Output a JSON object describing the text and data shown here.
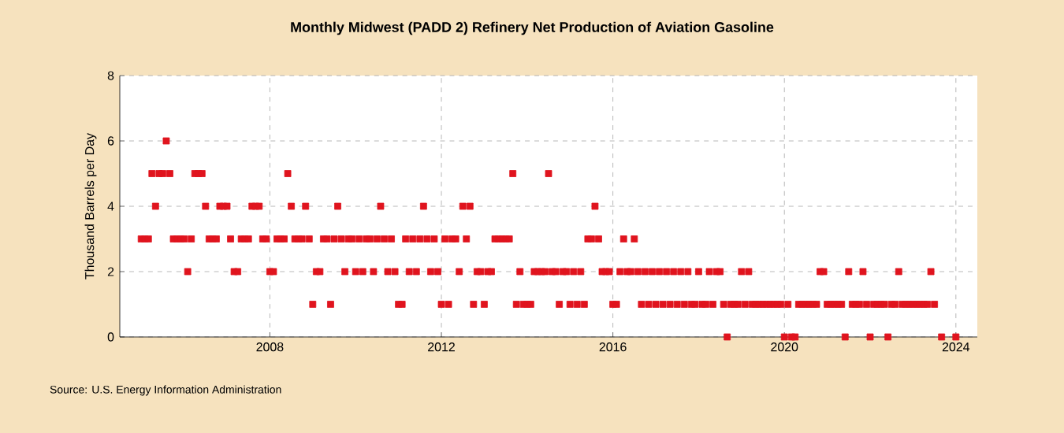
{
  "chart_data": {
    "type": "scatter",
    "title": "Monthly Midwest (PADD 2) Refinery Net Production of Aviation Gasoline",
    "ylabel": "Thousand Barrels per Day",
    "annotations": [
      "Source: U.S. Energy Information Administration"
    ],
    "marker": "square",
    "grid": true,
    "xlim": [
      "2004-07",
      "2024-07"
    ],
    "xticks": [
      "2008",
      "2012",
      "2016",
      "2020",
      "2024"
    ],
    "ylim": [
      0,
      8
    ],
    "yticks": [
      0,
      2,
      4,
      6,
      8
    ],
    "series": [
      {
        "color": "#e0141e",
        "x": [
          "2005-01",
          "2005-02",
          "2005-03",
          "2005-04",
          "2005-05",
          "2005-06",
          "2005-07",
          "2005-08",
          "2005-09",
          "2005-10",
          "2005-11",
          "2005-12",
          "2006-01",
          "2006-02",
          "2006-03",
          "2006-04",
          "2006-05",
          "2006-06",
          "2006-07",
          "2006-08",
          "2006-09",
          "2006-10",
          "2006-11",
          "2006-12",
          "2007-01",
          "2007-02",
          "2007-03",
          "2007-04",
          "2007-05",
          "2007-06",
          "2007-07",
          "2007-08",
          "2007-09",
          "2007-10",
          "2007-11",
          "2007-12",
          "2008-01",
          "2008-02",
          "2008-03",
          "2008-04",
          "2008-05",
          "2008-06",
          "2008-07",
          "2008-08",
          "2008-09",
          "2008-10",
          "2008-11",
          "2008-12",
          "2009-01",
          "2009-02",
          "2009-03",
          "2009-04",
          "2009-05",
          "2009-06",
          "2009-07",
          "2009-08",
          "2009-09",
          "2009-10",
          "2009-11",
          "2009-12",
          "2010-01",
          "2010-02",
          "2010-03",
          "2010-04",
          "2010-05",
          "2010-06",
          "2010-07",
          "2010-08",
          "2010-09",
          "2010-10",
          "2010-11",
          "2010-12",
          "2011-01",
          "2011-02",
          "2011-03",
          "2011-04",
          "2011-05",
          "2011-06",
          "2011-07",
          "2011-08",
          "2011-09",
          "2011-10",
          "2011-11",
          "2011-12",
          "2012-01",
          "2012-02",
          "2012-03",
          "2012-04",
          "2012-05",
          "2012-06",
          "2012-07",
          "2012-08",
          "2012-09",
          "2012-10",
          "2012-11",
          "2012-12",
          "2013-01",
          "2013-02",
          "2013-03",
          "2013-04",
          "2013-05",
          "2013-06",
          "2013-07",
          "2013-08",
          "2013-09",
          "2013-10",
          "2013-11",
          "2013-12",
          "2014-01",
          "2014-02",
          "2014-03",
          "2014-04",
          "2014-05",
          "2014-06",
          "2014-07",
          "2014-08",
          "2014-09",
          "2014-10",
          "2014-11",
          "2014-12",
          "2015-01",
          "2015-02",
          "2015-03",
          "2015-04",
          "2015-05",
          "2015-06",
          "2015-07",
          "2015-08",
          "2015-09",
          "2015-10",
          "2015-11",
          "2015-12",
          "2016-01",
          "2016-02",
          "2016-03",
          "2016-04",
          "2016-05",
          "2016-06",
          "2016-07",
          "2016-08",
          "2016-09",
          "2016-10",
          "2016-11",
          "2016-12",
          "2017-01",
          "2017-02",
          "2017-03",
          "2017-04",
          "2017-05",
          "2017-06",
          "2017-07",
          "2017-08",
          "2017-09",
          "2017-10",
          "2017-11",
          "2017-12",
          "2018-01",
          "2018-02",
          "2018-03",
          "2018-04",
          "2018-05",
          "2018-06",
          "2018-07",
          "2018-08",
          "2018-09",
          "2018-10",
          "2018-11",
          "2018-12",
          "2019-01",
          "2019-02",
          "2019-03",
          "2019-04",
          "2019-05",
          "2019-06",
          "2019-07",
          "2019-08",
          "2019-09",
          "2019-10",
          "2019-11",
          "2019-12",
          "2020-01",
          "2020-02",
          "2020-03",
          "2020-04",
          "2020-05",
          "2020-06",
          "2020-07",
          "2020-08",
          "2020-09",
          "2020-10",
          "2020-11",
          "2020-12",
          "2021-01",
          "2021-02",
          "2021-03",
          "2021-04",
          "2021-05",
          "2021-06",
          "2021-07",
          "2021-08",
          "2021-09",
          "2021-10",
          "2021-11",
          "2021-12",
          "2022-01",
          "2022-02",
          "2022-03",
          "2022-04",
          "2022-05",
          "2022-06",
          "2022-07",
          "2022-08",
          "2022-09",
          "2022-10",
          "2022-11",
          "2022-12",
          "2023-01",
          "2023-02",
          "2023-03",
          "2023-04",
          "2023-05",
          "2023-06",
          "2023-07",
          "2023-08",
          "2023-09",
          "2023-10",
          "2023-11",
          "2023-12",
          "2024-01"
        ],
        "values": [
          3,
          3,
          3,
          5,
          4,
          5,
          5,
          6,
          5,
          3,
          3,
          3,
          3,
          2,
          3,
          5,
          5,
          5,
          4,
          3,
          3,
          3,
          4,
          4,
          4,
          3,
          2,
          2,
          3,
          3,
          3,
          4,
          4,
          4,
          3,
          3,
          2,
          2,
          3,
          3,
          3,
          5,
          4,
          3,
          3,
          3,
          4,
          3,
          1,
          2,
          2,
          3,
          3,
          1,
          3,
          4,
          3,
          2,
          3,
          3,
          2,
          3,
          2,
          3,
          3,
          2,
          3,
          4,
          3,
          2,
          3,
          2,
          1,
          1,
          3,
          2,
          3,
          2,
          3,
          4,
          3,
          2,
          3,
          2,
          1,
          3,
          1,
          3,
          3,
          2,
          4,
          3,
          4,
          1,
          2,
          2,
          1,
          2,
          2,
          3,
          3,
          3,
          3,
          3,
          5,
          1,
          2,
          1,
          1,
          1,
          2,
          2,
          2,
          2,
          5,
          2,
          2,
          1,
          2,
          2,
          1,
          2,
          1,
          2,
          1,
          3,
          3,
          4,
          3,
          2,
          2,
          2,
          1,
          1,
          2,
          3,
          2,
          2,
          3,
          2,
          1,
          2,
          1,
          2,
          1,
          2,
          1,
          2,
          1,
          2,
          1,
          2,
          1,
          2,
          1,
          1,
          2,
          1,
          1,
          2,
          1,
          2,
          2,
          1,
          0,
          1,
          1,
          1,
          2,
          1,
          2,
          1,
          1,
          1,
          1,
          1,
          1,
          1,
          1,
          1,
          0,
          1,
          0,
          0,
          1,
          1,
          1,
          1,
          1,
          1,
          2,
          2,
          1,
          1,
          1,
          1,
          1,
          0,
          2,
          1,
          1,
          1,
          2,
          1,
          0,
          1,
          1,
          1,
          1,
          0,
          1,
          1,
          2,
          1,
          1,
          1,
          1,
          1,
          1,
          1,
          1,
          2,
          1,
          null,
          0,
          null,
          null,
          null,
          0
        ]
      }
    ]
  }
}
